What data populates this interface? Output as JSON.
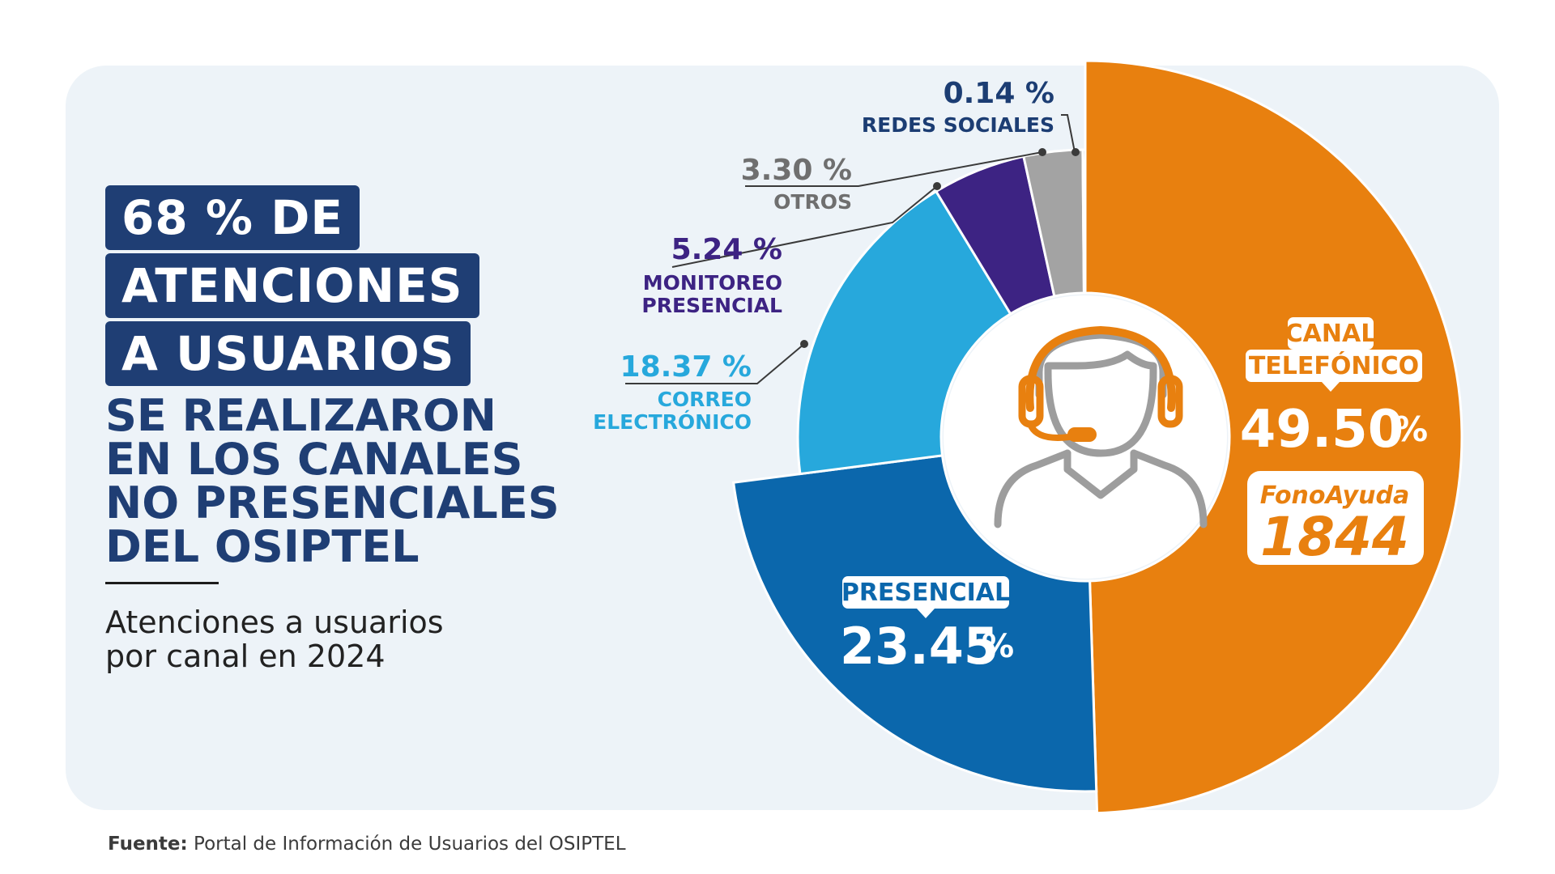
{
  "headline": {
    "box_lines": [
      "68 % DE",
      "ATENCIONES",
      "A USUARIOS"
    ],
    "text_lines": [
      "SE REALIZARON",
      "EN LOS CANALES",
      "NO PRESENCIALES",
      "DEL OSIPTEL"
    ]
  },
  "subtitle": [
    "Atenciones a usuarios",
    "por canal en 2024"
  ],
  "source": {
    "label": "Fuente:",
    "text": "Portal de Información de Usuarios del OSIPTEL"
  },
  "colors": {
    "navy": "#1f3e74",
    "orange": "#e8800f",
    "blue": "#0b67ac",
    "sky": "#27a8dc",
    "purple": "#3d2383",
    "gray": "#a3a3a3",
    "darkblue": "#1c3d73",
    "panel": "#edf3f8"
  },
  "chart_data": {
    "type": "pie",
    "title": "Atenciones a usuarios por canal en 2024",
    "slices": [
      {
        "label": "CANAL TELEFÓNICO",
        "value": 49.5,
        "display": "49.50",
        "color": "#e8800f",
        "note": [
          "FonoAyuda",
          "1844"
        ]
      },
      {
        "label": "PRESENCIAL",
        "value": 23.45,
        "display": "23.45",
        "color": "#0b67ac"
      },
      {
        "label": "CORREO ELECTRÓNICO",
        "value": 18.37,
        "display": "18.37 %",
        "color": "#27a8dc"
      },
      {
        "label": "MONITOREO PRESENCIAL",
        "value": 5.24,
        "display": "5.24 %",
        "color": "#3d2383"
      },
      {
        "label": "OTROS",
        "value": 3.3,
        "display": "3.30 %",
        "color": "#a3a3a3"
      },
      {
        "label": "REDES SOCIALES",
        "value": 0.14,
        "display": "0.14 %",
        "color": "#1c3d73"
      }
    ],
    "center_icon": "call-center-agent-icon",
    "percent_sign": "%"
  }
}
